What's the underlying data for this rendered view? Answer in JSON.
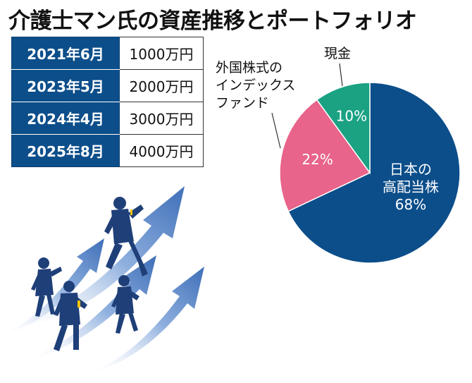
{
  "title": "介護士マン氏の資産推移とポートフォリオ",
  "history": [
    {
      "date": "2021年6月",
      "amount": "1000万円"
    },
    {
      "date": "2023年5月",
      "amount": "2000万円"
    },
    {
      "date": "2024年4月",
      "amount": "3000万円"
    },
    {
      "date": "2025年8月",
      "amount": "4000万円"
    }
  ],
  "chart_data": {
    "type": "pie",
    "title": "",
    "slices": [
      {
        "label_lines": [
          "日本の",
          "高配当株"
        ],
        "value": 68,
        "value_label": "68%",
        "color": "#0c4e8a"
      },
      {
        "label_lines": [
          "外国株式の",
          "インデックス",
          "ファンド"
        ],
        "value": 22,
        "value_label": "22%",
        "color": "#e8648a"
      },
      {
        "label_lines": [
          "現金"
        ],
        "value": 10,
        "value_label": "10%",
        "color": "#1aa283"
      }
    ]
  },
  "colors": {
    "navy": "#0c4e8a",
    "pink": "#e8648a",
    "green": "#1aa283",
    "arrow": "#5b86c7",
    "figure": "#1f3f78"
  },
  "illustration": "business-people-running-on-rising-arrows"
}
